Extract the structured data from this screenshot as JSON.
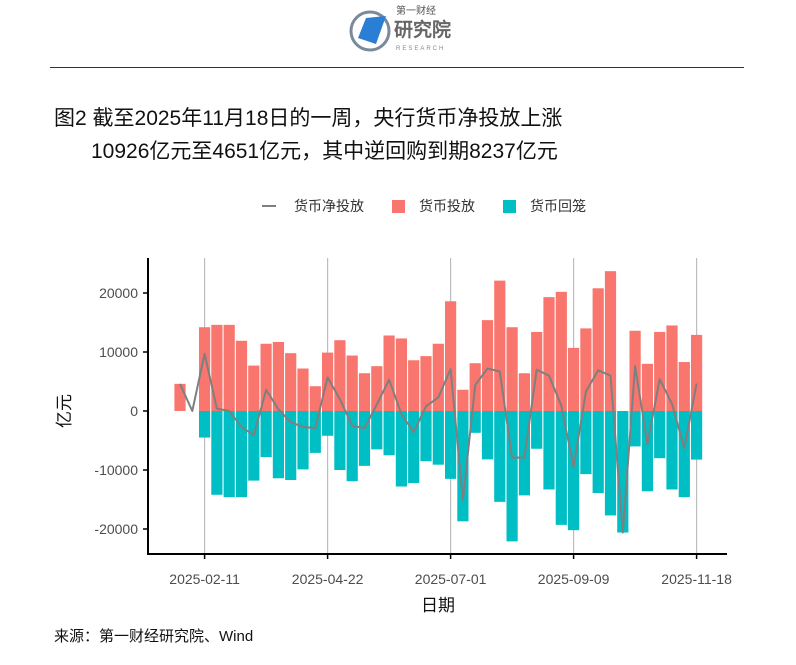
{
  "logo": {
    "line1": "第一财经",
    "line2": "研究院",
    "line3": "RESEARCH"
  },
  "title": {
    "line1": "图2 截至2025年11月18日的一周，央行货币净投放上涨",
    "line2": "10926亿元至4651亿元，其中逆回购到期8237亿元"
  },
  "source": "来源：第一财经研究院、Wind",
  "colors": {
    "injection": "#F8766D",
    "withdrawal": "#00BFC4",
    "net": "#7F7F7F"
  },
  "chart_data": {
    "type": "bar",
    "xlabel": "日期",
    "ylabel": "亿元",
    "ylim": [
      -25000,
      25000
    ],
    "yticks": [
      20000,
      10000,
      0,
      -10000,
      -20000
    ],
    "xticks": [
      "2025-02-11",
      "2025-04-22",
      "2025-07-01",
      "2025-09-09",
      "2025-11-18"
    ],
    "grid": "vertical at x ticks",
    "legend": {
      "position": "top",
      "entries": [
        "货币净投放",
        "货币投放",
        "货币回笼"
      ]
    },
    "dates": [
      "2025-01-28",
      "2025-02-04",
      "2025-02-11",
      "2025-02-18",
      "2025-02-25",
      "2025-03-04",
      "2025-03-11",
      "2025-03-18",
      "2025-03-25",
      "2025-04-01",
      "2025-04-08",
      "2025-04-15",
      "2025-04-22",
      "2025-04-29",
      "2025-05-06",
      "2025-05-13",
      "2025-05-20",
      "2025-05-27",
      "2025-06-03",
      "2025-06-10",
      "2025-06-17",
      "2025-06-24",
      "2025-07-01",
      "2025-07-08",
      "2025-07-15",
      "2025-07-22",
      "2025-07-29",
      "2025-08-05",
      "2025-08-12",
      "2025-08-19",
      "2025-08-26",
      "2025-09-02",
      "2025-09-09",
      "2025-09-16",
      "2025-09-23",
      "2025-09-30",
      "2025-10-07",
      "2025-10-14",
      "2025-10-21",
      "2025-10-28",
      "2025-11-04",
      "2025-11-11",
      "2025-11-18"
    ],
    "series": [
      {
        "name": "货币投放",
        "type": "bar",
        "values": [
          4600,
          0,
          14200,
          14600,
          14600,
          11900,
          7700,
          11400,
          11700,
          9800,
          7200,
          4200,
          9900,
          12000,
          9400,
          6400,
          7600,
          12800,
          12300,
          8600,
          9300,
          11400,
          18600,
          3600,
          8100,
          15400,
          22100,
          14200,
          6400,
          13400,
          19300,
          20200,
          10700,
          14000,
          20800,
          23700,
          0,
          13600,
          8000,
          13400,
          14500,
          8300,
          12900
        ]
      },
      {
        "name": "货币回笼",
        "type": "bar",
        "values": [
          0,
          0,
          -4500,
          -14200,
          -14600,
          -14600,
          -11800,
          -7800,
          -11400,
          -11700,
          -9900,
          -7100,
          -4200,
          -10000,
          -11900,
          -9300,
          -6500,
          -7500,
          -12800,
          -12200,
          -8500,
          -9100,
          -11500,
          -18700,
          -3700,
          -8200,
          -15400,
          -22100,
          -14300,
          -6400,
          -13300,
          -19300,
          -20200,
          -10700,
          -13900,
          -17700,
          -20600,
          -6000,
          -13600,
          -8000,
          -13300,
          -14600,
          -8237
        ]
      },
      {
        "name": "货币净投放",
        "type": "line",
        "values": [
          4600,
          0,
          9700,
          400,
          0,
          -2700,
          -4100,
          3600,
          300,
          -1900,
          -2700,
          -2900,
          5700,
          2000,
          -2500,
          -2900,
          1100,
          5300,
          -500,
          -3600,
          800,
          2300,
          7100,
          -15100,
          4400,
          7200,
          6700,
          -7900,
          -7900,
          7000,
          6000,
          900,
          -9500,
          3300,
          6900,
          6000,
          -20600,
          7600,
          -5600,
          5400,
          1200,
          -6300,
          4651
        ]
      }
    ]
  }
}
